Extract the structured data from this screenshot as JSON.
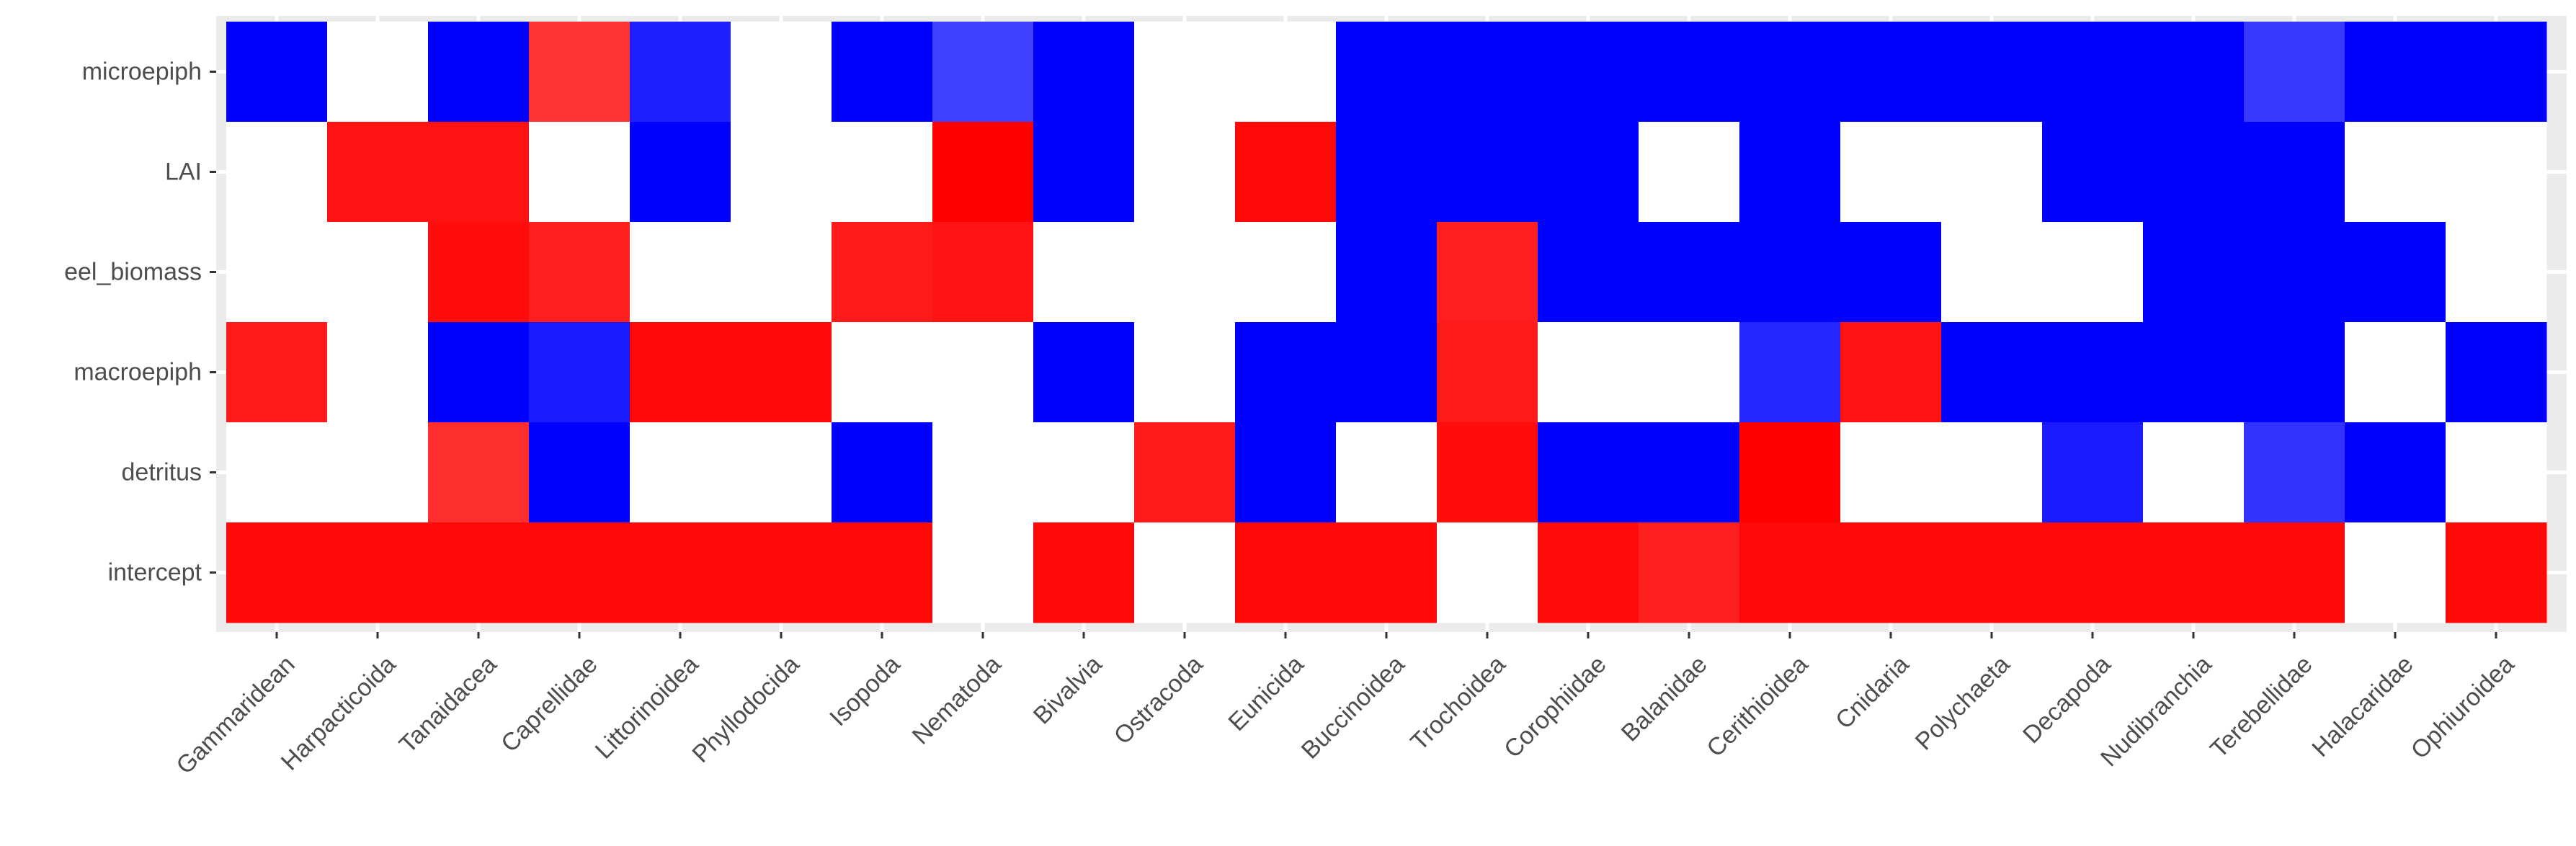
{
  "chart_data": {
    "type": "heatmap",
    "title": "",
    "xlabel": "",
    "ylabel": "",
    "grid": true,
    "legend": "none",
    "x_categories": [
      "Gammaridean",
      "Harpacticoida",
      "Tanaidacea",
      "Caprellidae",
      "Littorinoidea",
      "Phyllodocida",
      "Isopoda",
      "Nematoda",
      "Bivalvia",
      "Ostracoda",
      "Eunicida",
      "Buccinoidea",
      "Trochoidea",
      "Corophiidae",
      "Balanidae",
      "Cerithioidea",
      "Cnidaria",
      "Polychaeta",
      "Decapoda",
      "Nudibranchia",
      "Terebellidae",
      "Halacaridae",
      "Ophiuroidea"
    ],
    "y_categories": [
      "intercept",
      "detritus",
      "macroepiph",
      "eel_biomass",
      "LAI",
      "microepiph"
    ],
    "colors": {
      "positive": "#ff0000",
      "negative": "#0000ff",
      "zero": "#ffffff",
      "panel": "#ebebeb"
    },
    "values_note": "1 = red (positive), -1 = blue (negative), 0 = white; intermediate magnitudes shown as lighter shades",
    "rows": [
      {
        "name": "microepiph",
        "values": [
          -1,
          0,
          -1,
          0.8,
          -0.88,
          0,
          -1,
          -0.75,
          -1,
          0,
          0,
          -1,
          -1,
          -1,
          -1,
          -1,
          -1,
          -1,
          -1,
          -1,
          -0.78,
          -1,
          -1
        ]
      },
      {
        "name": "LAI",
        "values": [
          0,
          0.93,
          0.93,
          0,
          -1,
          0,
          0,
          1,
          -1,
          0,
          0.97,
          -1,
          -1,
          -1,
          0,
          -1,
          0,
          0,
          -1,
          -1,
          -1,
          0,
          0
        ]
      },
      {
        "name": "eel_biomass",
        "values": [
          0,
          0,
          0.95,
          0.88,
          0,
          0,
          0.9,
          0.93,
          0,
          0,
          0,
          -1,
          0.88,
          -1,
          -1,
          -1,
          -1,
          0,
          0,
          -1,
          -1,
          -1,
          0
        ]
      },
      {
        "name": "macroepiph",
        "values": [
          0.9,
          0,
          -1,
          -0.9,
          0.97,
          0.97,
          0,
          0,
          -1,
          0,
          -1,
          -1,
          0.9,
          0,
          0,
          -0.85,
          0.93,
          -1,
          -1,
          -1,
          -1,
          0,
          -1
        ]
      },
      {
        "name": "detritus",
        "values": [
          0,
          0,
          0.82,
          -1,
          0,
          0,
          -1,
          0,
          0,
          0.9,
          -1,
          0,
          0.95,
          -1,
          -1,
          1,
          0,
          0,
          -0.9,
          0,
          -0.8,
          -1,
          0
        ]
      },
      {
        "name": "intercept",
        "values": [
          0.97,
          0.97,
          0.97,
          0.97,
          0.97,
          0.97,
          0.97,
          0,
          0.97,
          0,
          0.97,
          0.97,
          0,
          0.95,
          0.88,
          0.97,
          0.97,
          0.97,
          0.97,
          0.97,
          0.97,
          0,
          0.97
        ]
      }
    ]
  }
}
